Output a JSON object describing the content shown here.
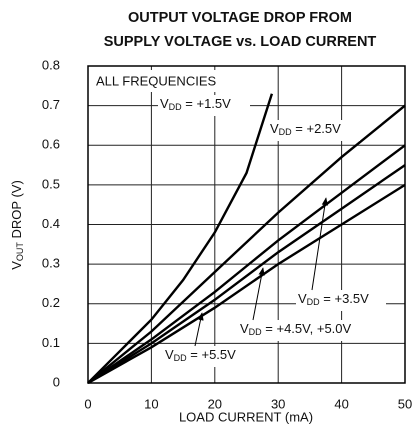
{
  "chart_data": {
    "type": "line",
    "title": [
      "OUTPUT VOLTAGE DROP FROM",
      "SUPPLY VOLTAGE vs. LOAD CURRENT"
    ],
    "xlabel": "LOAD CURRENT (mA)",
    "ylabel": "VOUT DROP (V)",
    "annotation": "ALL FREQUENCIES",
    "xlim": [
      0,
      50
    ],
    "xticks": [
      0,
      10,
      20,
      30,
      40,
      50
    ],
    "ylim": [
      0,
      0.8
    ],
    "yticks": [
      {
        "value": 0,
        "label": "0"
      },
      {
        "value": 0.1,
        "label": "0.1"
      },
      {
        "value": 0.2,
        "label": "0.2"
      },
      {
        "value": 0.3,
        "label": "0.3"
      },
      {
        "value": 0.4,
        "label": "0.4"
      },
      {
        "value": 0.5,
        "label": "0.5"
      },
      {
        "value": 0.6,
        "label": "0.6"
      },
      {
        "value": 0.7,
        "label": "0.7"
      },
      {
        "value": 0.8,
        "label": "0.8"
      }
    ],
    "grid": true,
    "series": [
      {
        "name": "VDD = +1.5V",
        "color": "#000000",
        "x": [
          0,
          5,
          10,
          15,
          20,
          25,
          29
        ],
        "values": [
          0,
          0.08,
          0.16,
          0.26,
          0.38,
          0.53,
          0.73
        ]
      },
      {
        "name": "VDD = +2.5V",
        "color": "#000000",
        "x": [
          0,
          10,
          20,
          30,
          40,
          50
        ],
        "values": [
          0,
          0.13,
          0.28,
          0.43,
          0.57,
          0.7
        ]
      },
      {
        "name": "VDD = +3.5V",
        "color": "#000000",
        "x": [
          0,
          10,
          20,
          30,
          40,
          50
        ],
        "values": [
          0,
          0.11,
          0.23,
          0.36,
          0.48,
          0.6
        ]
      },
      {
        "name": "VDD = +4.5V, +5.0V",
        "color": "#000000",
        "x": [
          0,
          10,
          20,
          30,
          40,
          50
        ],
        "values": [
          0,
          0.1,
          0.21,
          0.33,
          0.44,
          0.55
        ]
      },
      {
        "name": "VDD = +5.5V",
        "color": "#000000",
        "x": [
          0,
          10,
          20,
          30,
          40,
          50
        ],
        "values": [
          0,
          0.09,
          0.19,
          0.3,
          0.4,
          0.5
        ]
      }
    ]
  }
}
